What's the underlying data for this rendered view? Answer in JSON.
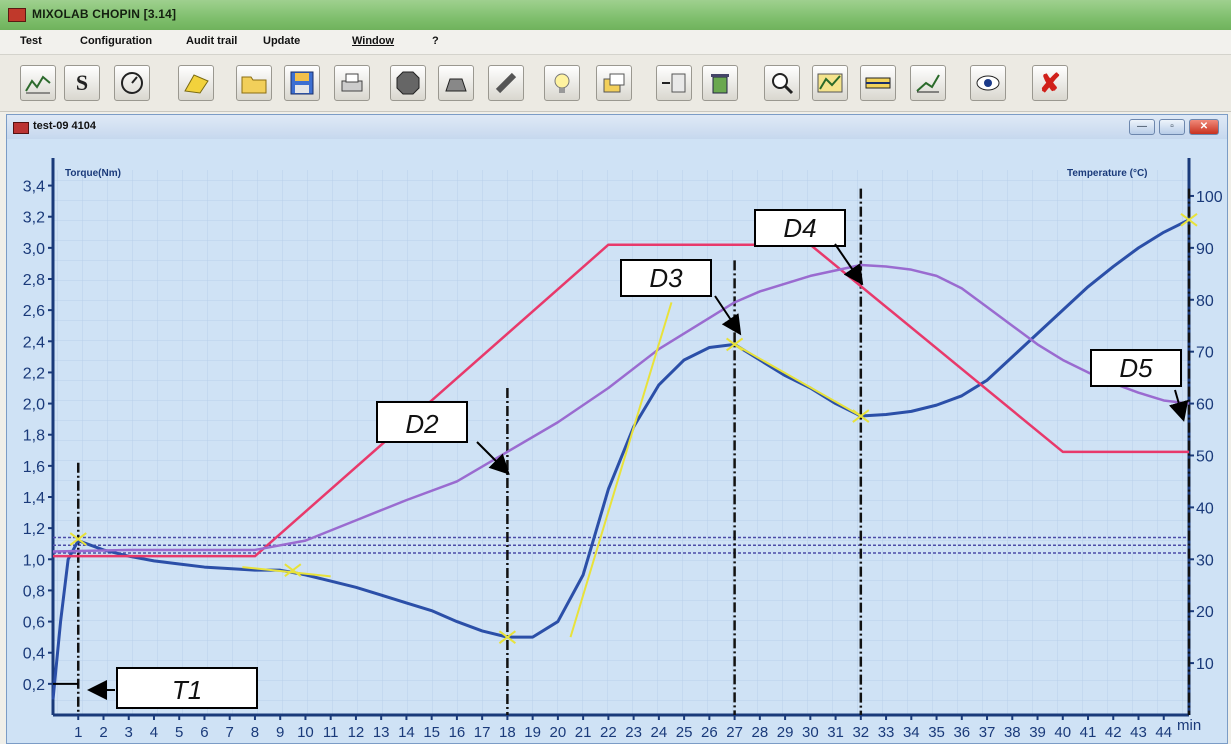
{
  "window": {
    "title": "MIXOLAB CHOPIN [3.14]"
  },
  "menu": [
    "Test",
    "Configuration",
    "Audit trail",
    "Update",
    "Window",
    "?"
  ],
  "toolbar": {
    "buttons": [
      "chart-icon",
      "s-icon",
      "gauge-icon",
      "note-icon",
      "folder-icon",
      "save-icon",
      "print-icon",
      "stop-icon",
      "scale-icon",
      "ruler-icon",
      "bulb-icon",
      "export-icon",
      "import-icon",
      "trash-icon",
      "zoom-icon",
      "curves-icon",
      "bar-icon",
      "axis-icon",
      "view-icon",
      "close-red-icon"
    ]
  },
  "subwindow": {
    "title": "test-09 4104"
  },
  "chart_data": {
    "type": "line",
    "left_axis_label": "Torque(Nm)",
    "right_axis_label": "Temperature   (°C)",
    "x_unit": "min",
    "xlim": [
      0,
      45
    ],
    "ylim_left": [
      0,
      3.5
    ],
    "ylim_right": [
      0,
      105
    ],
    "x_ticks": [
      1,
      2,
      3,
      4,
      5,
      6,
      7,
      8,
      9,
      10,
      11,
      12,
      13,
      14,
      15,
      16,
      17,
      18,
      19,
      20,
      21,
      22,
      23,
      24,
      25,
      26,
      27,
      28,
      29,
      30,
      31,
      32,
      33,
      34,
      35,
      36,
      37,
      38,
      39,
      40,
      41,
      42,
      43,
      44
    ],
    "y_left_ticks": [
      "0,2",
      "0,4",
      "0,6",
      "0,8",
      "1,0",
      "1,2",
      "1,4",
      "1,6",
      "1,8",
      "2,0",
      "2,2",
      "2,4",
      "2,6",
      "2,8",
      "3,0",
      "3,2",
      "3,4"
    ],
    "y_right_ticks": [
      "10",
      "20",
      "30",
      "40",
      "50",
      "60",
      "70",
      "80",
      "90",
      "100"
    ],
    "series": [
      {
        "color": "#2b4fa8",
        "points": [
          [
            0,
            0.1
          ],
          [
            0.3,
            0.6
          ],
          [
            0.6,
            1.0
          ],
          [
            1,
            1.12
          ],
          [
            2,
            1.06
          ],
          [
            3,
            1.02
          ],
          [
            4,
            0.99
          ],
          [
            5,
            0.97
          ],
          [
            6,
            0.95
          ],
          [
            7,
            0.94
          ],
          [
            8,
            0.93
          ],
          [
            9,
            0.93
          ],
          [
            10,
            0.9
          ],
          [
            11,
            0.86
          ],
          [
            12,
            0.82
          ],
          [
            13,
            0.77
          ],
          [
            14,
            0.72
          ],
          [
            15,
            0.67
          ],
          [
            16,
            0.6
          ],
          [
            17,
            0.54
          ],
          [
            18,
            0.5
          ],
          [
            19,
            0.5
          ],
          [
            20,
            0.6
          ],
          [
            21,
            0.9
          ],
          [
            22,
            1.45
          ],
          [
            23,
            1.85
          ],
          [
            24,
            2.12
          ],
          [
            25,
            2.28
          ],
          [
            26,
            2.36
          ],
          [
            27,
            2.38
          ],
          [
            28,
            2.28
          ],
          [
            29,
            2.18
          ],
          [
            30,
            2.1
          ],
          [
            31,
            2.0
          ],
          [
            32,
            1.92
          ],
          [
            33,
            1.93
          ],
          [
            34,
            1.95
          ],
          [
            35,
            1.99
          ],
          [
            36,
            2.05
          ],
          [
            37,
            2.15
          ],
          [
            38,
            2.3
          ],
          [
            39,
            2.45
          ],
          [
            40,
            2.6
          ],
          [
            41,
            2.75
          ],
          [
            42,
            2.88
          ],
          [
            43,
            3.0
          ],
          [
            44,
            3.1
          ],
          [
            45,
            3.18
          ]
        ]
      },
      {
        "color": "#e8396b",
        "points": [
          [
            0,
            1.02
          ],
          [
            8,
            1.02
          ],
          [
            22,
            3.02
          ],
          [
            30,
            3.02
          ],
          [
            40,
            1.69
          ],
          [
            45,
            1.69
          ]
        ]
      },
      {
        "color": "#9a6bd0",
        "points": [
          [
            0,
            1.05
          ],
          [
            3,
            1.06
          ],
          [
            8,
            1.06
          ],
          [
            10,
            1.12
          ],
          [
            12,
            1.25
          ],
          [
            14,
            1.38
          ],
          [
            16,
            1.5
          ],
          [
            18,
            1.69
          ],
          [
            20,
            1.88
          ],
          [
            22,
            2.1
          ],
          [
            24,
            2.35
          ],
          [
            26,
            2.55
          ],
          [
            27,
            2.65
          ],
          [
            28,
            2.72
          ],
          [
            30,
            2.82
          ],
          [
            32,
            2.89
          ],
          [
            33,
            2.88
          ],
          [
            34,
            2.86
          ],
          [
            35,
            2.82
          ],
          [
            36,
            2.74
          ],
          [
            37,
            2.62
          ],
          [
            38,
            2.5
          ],
          [
            39,
            2.38
          ],
          [
            40,
            2.28
          ],
          [
            41,
            2.2
          ],
          [
            42,
            2.13
          ],
          [
            43,
            2.07
          ],
          [
            44,
            2.02
          ],
          [
            45,
            2.0
          ]
        ]
      }
    ],
    "reference_lines": [
      1.09,
      1.04,
      1.14
    ],
    "markers": [
      {
        "label": "T1",
        "x": 1,
        "y": 0.2
      },
      {
        "label": "D2",
        "x": 18,
        "y": 1.69
      },
      {
        "label": "D3",
        "x": 27,
        "y": 2.65
      },
      {
        "label": "D4",
        "x": 32,
        "y": 2.89
      },
      {
        "label": "D5",
        "x": 45,
        "y": 2.0
      }
    ],
    "vlines": [
      1,
      18,
      27,
      32,
      45
    ]
  }
}
